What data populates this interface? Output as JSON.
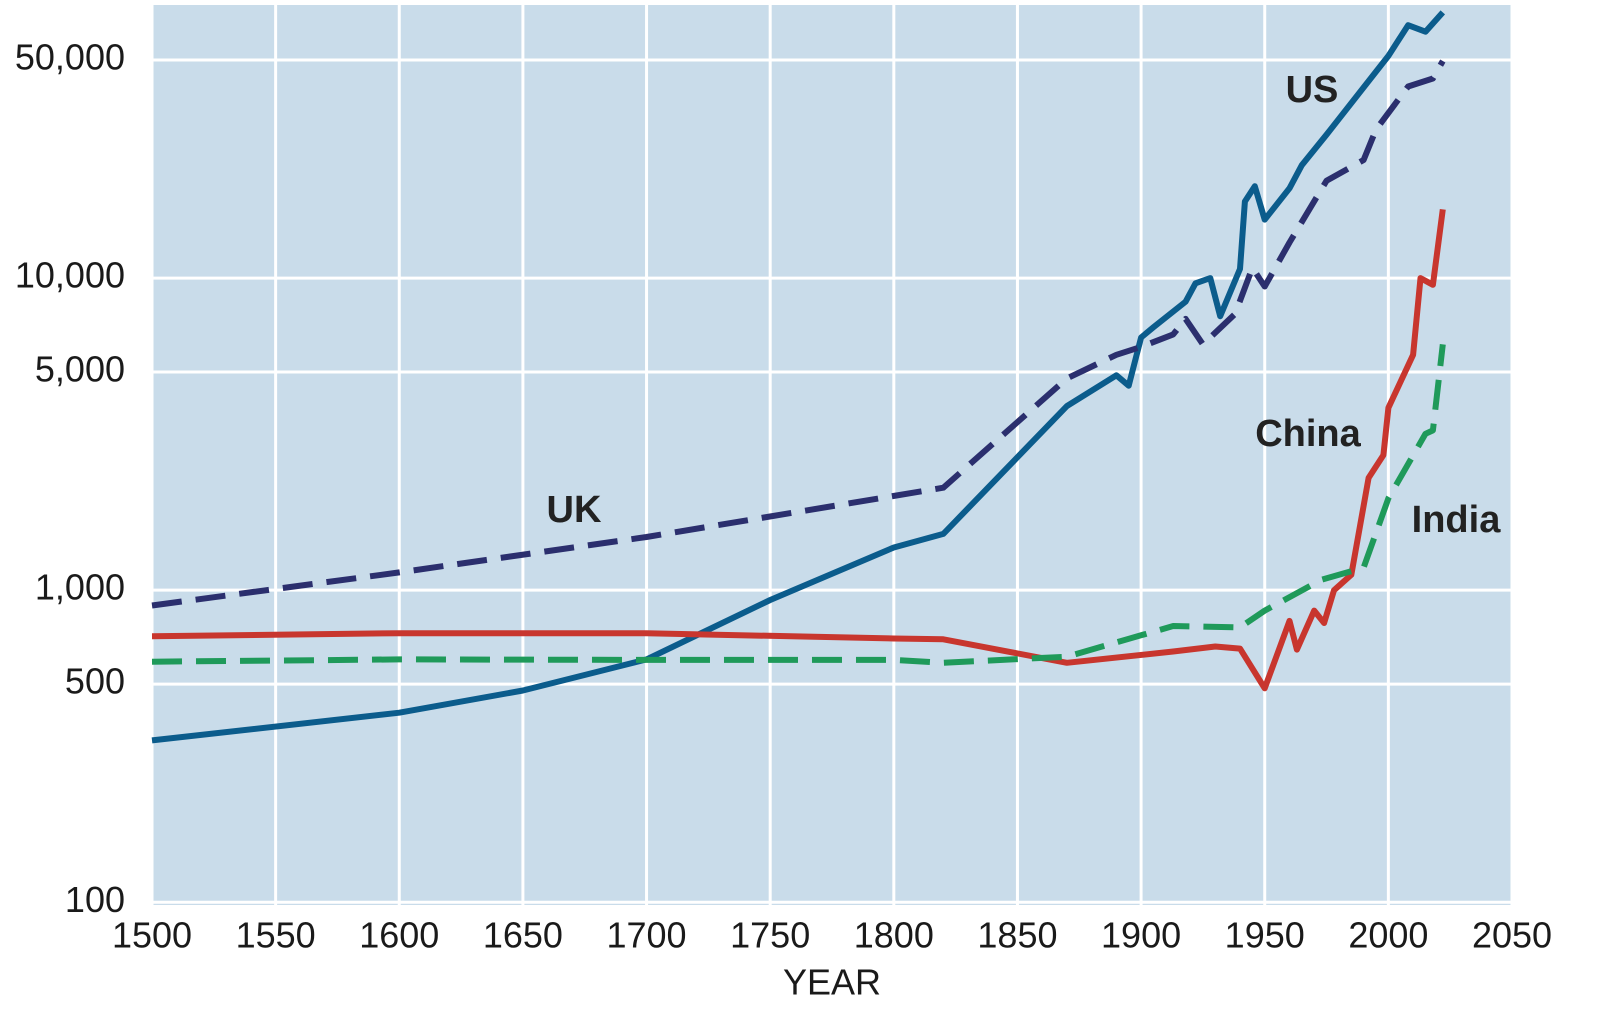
{
  "chart_data": {
    "type": "line",
    "xlabel": "YEAR",
    "log_y": true,
    "grid": true,
    "background": "#c9dcea",
    "xlim": [
      1500,
      2050
    ],
    "xticks": [
      1500,
      1550,
      1600,
      1650,
      1700,
      1750,
      1800,
      1850,
      1900,
      1950,
      2000,
      2050
    ],
    "ylim": [
      98,
      75000
    ],
    "yticks": [
      100,
      500,
      {
        "value": 1000,
        "label": "1,000"
      },
      {
        "value": 5000,
        "label": "5,000"
      },
      {
        "value": 10000,
        "label": "10,000"
      },
      {
        "value": 50000,
        "label": "50,000"
      }
    ],
    "series": [
      {
        "name": "US",
        "color": "#0b5c8c",
        "style": "solid",
        "x": [
          1500,
          1600,
          1650,
          1700,
          1750,
          1800,
          1820,
          1870,
          1890,
          1895,
          1900,
          1905,
          1918,
          1922,
          1928,
          1932,
          1940,
          1942,
          1946,
          1950,
          1960,
          1965,
          1975,
          2000,
          2008,
          2015,
          2022
        ],
        "values": [
          330,
          405,
          477,
          600,
          930,
          1370,
          1515,
          3890,
          4880,
          4520,
          6450,
          6960,
          8400,
          9620,
          10000,
          7550,
          10700,
          17600,
          19700,
          15400,
          19400,
          23000,
          28800,
          51500,
          64600,
          61600,
          71000
        ]
      },
      {
        "name": "UK",
        "color": "#2b2f6e",
        "style": "dashed",
        "x": [
          1500,
          1600,
          1700,
          1820,
          1870,
          1890,
          1900,
          1913,
          1918,
          1925,
          1938,
          1945,
          1950,
          1960,
          1975,
          1990,
          1995,
          2008,
          2018,
          2022
        ],
        "values": [
          893,
          1140,
          1480,
          2130,
          4770,
          5680,
          6020,
          6600,
          7400,
          6130,
          7680,
          10800,
          9400,
          13000,
          20500,
          23900,
          29900,
          41100,
          43600,
          49600
        ]
      },
      {
        "name": "China",
        "color": "#c8362e",
        "style": "solid",
        "x": [
          1500,
          1600,
          1700,
          1800,
          1820,
          1870,
          1913,
          1930,
          1940,
          1950,
          1960,
          1963,
          1970,
          1974,
          1978,
          1985,
          1992,
          1998,
          2000,
          2010,
          2013,
          2018,
          2022
        ],
        "values": [
          712,
          728,
          728,
          700,
          696,
          585,
          636,
          660,
          650,
          485,
          797,
          645,
          860,
          785,
          1000,
          1120,
          2290,
          2710,
          3840,
          5680,
          10000,
          9520,
          16600
        ]
      },
      {
        "name": "India",
        "color": "#1f9a5a",
        "style": "dashed",
        "x": [
          1500,
          1600,
          1700,
          1800,
          1820,
          1870,
          1913,
          1940,
          1950,
          1973,
          1990,
          2000,
          2015,
          2018,
          2022
        ],
        "values": [
          590,
          600,
          598,
          598,
          585,
          612,
          768,
          760,
          860,
          1080,
          1180,
          1970,
          3170,
          3250,
          6130
        ]
      }
    ]
  }
}
